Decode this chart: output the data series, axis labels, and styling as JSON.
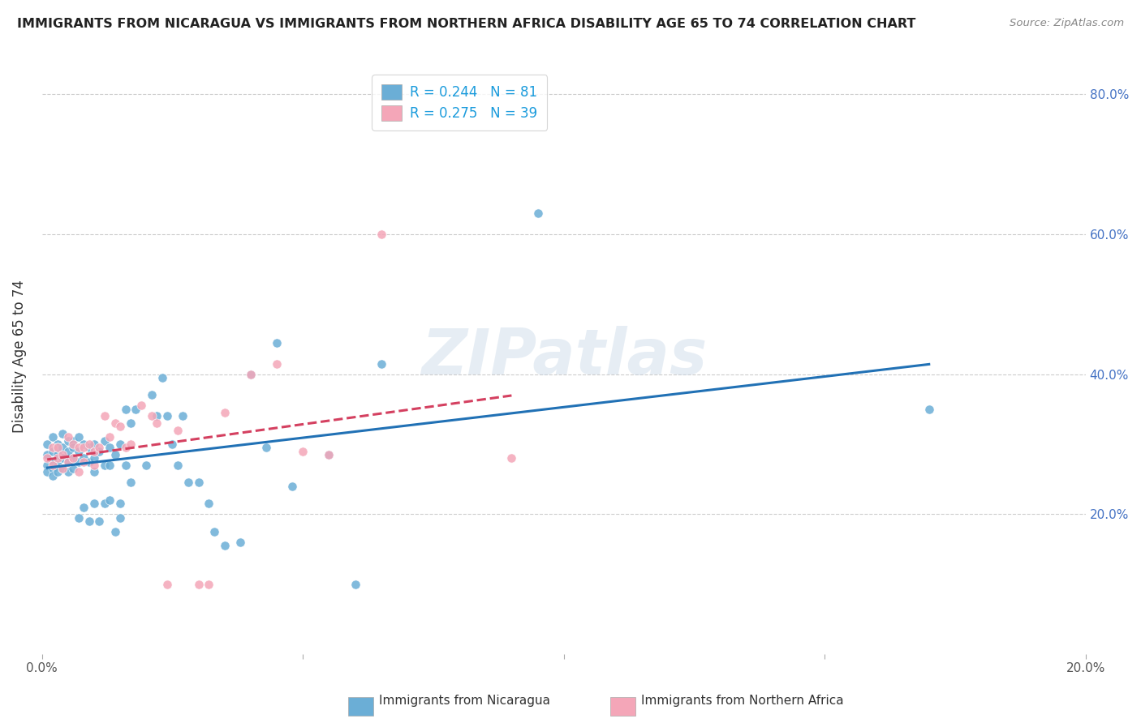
{
  "title": "IMMIGRANTS FROM NICARAGUA VS IMMIGRANTS FROM NORTHERN AFRICA DISABILITY AGE 65 TO 74 CORRELATION CHART",
  "source": "Source: ZipAtlas.com",
  "ylabel": "Disability Age 65 to 74",
  "xlim": [
    0.0,
    0.2
  ],
  "ylim": [
    0.0,
    0.85
  ],
  "x_ticks": [
    0.0,
    0.05,
    0.1,
    0.15,
    0.2
  ],
  "x_tick_labels": [
    "0.0%",
    "",
    "",
    "",
    "20.0%"
  ],
  "y_tick_labels": [
    "20.0%",
    "40.0%",
    "60.0%",
    "80.0%"
  ],
  "y_ticks": [
    0.2,
    0.4,
    0.6,
    0.8
  ],
  "R1": 0.244,
  "N1": 81,
  "R2": 0.275,
  "N2": 39,
  "color1": "#6baed6",
  "color2": "#f4a6b8",
  "trendline1_color": "#2171b5",
  "trendline2_color": "#d44060",
  "background_color": "#ffffff",
  "watermark": "ZIPatlas",
  "legend_label1_r": "R = 0.244",
  "legend_label1_n": "N = 81",
  "legend_label2_r": "R = 0.275",
  "legend_label2_n": "N = 39",
  "scatter1_x": [
    0.001,
    0.001,
    0.001,
    0.001,
    0.002,
    0.002,
    0.002,
    0.002,
    0.002,
    0.003,
    0.003,
    0.003,
    0.003,
    0.003,
    0.004,
    0.004,
    0.004,
    0.004,
    0.005,
    0.005,
    0.005,
    0.005,
    0.006,
    0.006,
    0.006,
    0.006,
    0.007,
    0.007,
    0.007,
    0.007,
    0.008,
    0.008,
    0.008,
    0.009,
    0.009,
    0.009,
    0.01,
    0.01,
    0.01,
    0.01,
    0.011,
    0.011,
    0.012,
    0.012,
    0.012,
    0.013,
    0.013,
    0.013,
    0.014,
    0.014,
    0.015,
    0.015,
    0.015,
    0.016,
    0.016,
    0.017,
    0.017,
    0.018,
    0.02,
    0.021,
    0.022,
    0.023,
    0.024,
    0.025,
    0.026,
    0.027,
    0.028,
    0.03,
    0.032,
    0.033,
    0.035,
    0.038,
    0.04,
    0.043,
    0.045,
    0.048,
    0.055,
    0.06,
    0.065,
    0.095,
    0.17
  ],
  "scatter1_y": [
    0.285,
    0.3,
    0.27,
    0.26,
    0.31,
    0.29,
    0.275,
    0.265,
    0.255,
    0.3,
    0.285,
    0.27,
    0.26,
    0.295,
    0.315,
    0.295,
    0.28,
    0.265,
    0.305,
    0.29,
    0.275,
    0.26,
    0.305,
    0.295,
    0.28,
    0.265,
    0.31,
    0.29,
    0.275,
    0.195,
    0.3,
    0.28,
    0.21,
    0.295,
    0.275,
    0.19,
    0.3,
    0.28,
    0.26,
    0.215,
    0.29,
    0.19,
    0.305,
    0.27,
    0.215,
    0.295,
    0.27,
    0.22,
    0.285,
    0.175,
    0.3,
    0.215,
    0.195,
    0.35,
    0.27,
    0.33,
    0.245,
    0.35,
    0.27,
    0.37,
    0.34,
    0.395,
    0.34,
    0.3,
    0.27,
    0.34,
    0.245,
    0.245,
    0.215,
    0.175,
    0.155,
    0.16,
    0.4,
    0.295,
    0.445,
    0.24,
    0.285,
    0.1,
    0.415,
    0.63,
    0.35
  ],
  "scatter2_x": [
    0.001,
    0.002,
    0.002,
    0.003,
    0.003,
    0.004,
    0.004,
    0.005,
    0.005,
    0.006,
    0.006,
    0.007,
    0.007,
    0.008,
    0.008,
    0.009,
    0.01,
    0.01,
    0.011,
    0.012,
    0.013,
    0.014,
    0.015,
    0.016,
    0.017,
    0.019,
    0.021,
    0.022,
    0.024,
    0.026,
    0.03,
    0.032,
    0.035,
    0.04,
    0.045,
    0.05,
    0.055,
    0.065,
    0.09
  ],
  "scatter2_y": [
    0.28,
    0.295,
    0.27,
    0.28,
    0.295,
    0.285,
    0.265,
    0.31,
    0.275,
    0.28,
    0.3,
    0.295,
    0.26,
    0.295,
    0.275,
    0.3,
    0.29,
    0.27,
    0.295,
    0.34,
    0.31,
    0.33,
    0.325,
    0.295,
    0.3,
    0.355,
    0.34,
    0.33,
    0.1,
    0.32,
    0.1,
    0.1,
    0.345,
    0.4,
    0.415,
    0.29,
    0.285,
    0.6,
    0.28
  ]
}
